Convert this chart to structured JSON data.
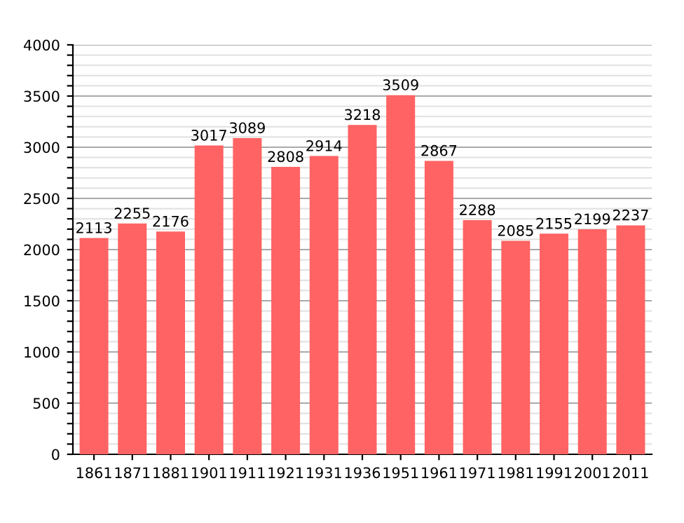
{
  "chart_data": {
    "type": "bar",
    "categories": [
      "1861",
      "1871",
      "1881",
      "1901",
      "1911",
      "1921",
      "1931",
      "1936",
      "1951",
      "1961",
      "1971",
      "1981",
      "1991",
      "2001",
      "2011"
    ],
    "values": [
      2113,
      2255,
      2176,
      3017,
      3089,
      2808,
      2914,
      3218,
      3509,
      2867,
      2288,
      2085,
      2155,
      2199,
      2237
    ],
    "color": "#ff6363",
    "data_labels": true,
    "ylim": [
      0,
      4000
    ],
    "yticks": [
      0,
      {
        "value": 100,
        "label": null
      },
      {
        "value": 200,
        "label": null
      },
      {
        "value": 300,
        "label": null
      },
      {
        "value": 400,
        "label": null
      },
      500,
      {
        "value": 600,
        "label": null
      },
      {
        "value": 700,
        "label": null
      },
      {
        "value": 800,
        "label": null
      },
      {
        "value": 900,
        "label": null
      },
      1000,
      {
        "value": 1100,
        "label": null
      },
      {
        "value": 1200,
        "label": null
      },
      {
        "value": 1300,
        "label": null
      },
      {
        "value": 1400,
        "label": null
      },
      1500,
      {
        "value": 1600,
        "label": null
      },
      {
        "value": 1700,
        "label": null
      },
      {
        "value": 1800,
        "label": null
      },
      {
        "value": 1900,
        "label": null
      },
      2000,
      {
        "value": 2100,
        "label": null
      },
      {
        "value": 2200,
        "label": null
      },
      {
        "value": 2300,
        "label": null
      },
      {
        "value": 2400,
        "label": null
      },
      2500,
      {
        "value": 2600,
        "label": null
      },
      {
        "value": 2700,
        "label": null
      },
      {
        "value": 2800,
        "label": null
      },
      {
        "value": 2900,
        "label": null
      },
      3000,
      {
        "value": 3100,
        "label": null
      },
      {
        "value": 3200,
        "label": null
      },
      {
        "value": 3300,
        "label": null
      },
      {
        "value": 3400,
        "label": null
      },
      3500,
      {
        "value": 3600,
        "label": null
      },
      {
        "value": 3700,
        "label": null
      },
      {
        "value": 3800,
        "label": null
      },
      {
        "value": 3900,
        "label": null
      },
      4000
    ],
    "grid": "y"
  }
}
